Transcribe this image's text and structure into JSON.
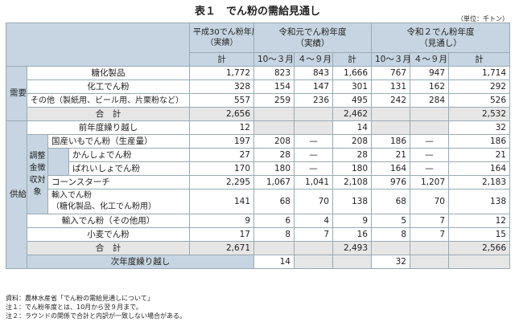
{
  "title": "表１　でん粉の需給見通し",
  "unit": "（単位：千トン）",
  "header": {
    "h30": "平成30でん粉年度",
    "h30_sub": "（実績）",
    "r1": "令和元でん粉年度",
    "r1_sub": "（実績）",
    "r2": "令和２でん粉年度",
    "r2_sub": "（見通し）",
    "kei": "計",
    "oct_mar": "10～３月",
    "apr_sep": "４～９月"
  },
  "demand": {
    "label": "需要",
    "rows": [
      {
        "name": "糖化製品",
        "v": [
          "1,772",
          "823",
          "843",
          "1,666",
          "767",
          "947",
          "1,714"
        ]
      },
      {
        "name": "化工でん粉",
        "v": [
          "328",
          "154",
          "147",
          "301",
          "131",
          "162",
          "292"
        ]
      },
      {
        "name": "その他（製紙用、ビール用、片栗粉など）",
        "v": [
          "557",
          "259",
          "236",
          "495",
          "242",
          "284",
          "526"
        ]
      }
    ],
    "total": {
      "name": "合　計",
      "v": [
        "2,656",
        "",
        "",
        "2,462",
        "",
        "",
        "2,532"
      ]
    }
  },
  "supply": {
    "label": "供給",
    "carry_in": {
      "name": "前年度繰り越し",
      "v": [
        "12",
        "",
        "",
        "14",
        "",
        "",
        "32"
      ]
    },
    "domestic": {
      "name": "国産いもでん粉（生産量）",
      "v": [
        "197",
        "208",
        "—",
        "208",
        "186",
        "—",
        "186"
      ]
    },
    "kansho": {
      "name": "かんしょでん粉",
      "v": [
        "27",
        "28",
        "—",
        "28",
        "21",
        "—",
        "21"
      ]
    },
    "bareisho": {
      "name": "ばれいしょでん粉",
      "v": [
        "170",
        "180",
        "—",
        "180",
        "164",
        "—",
        "164"
      ]
    },
    "adjust_label": "調整金徴収対象",
    "cornstarch": {
      "name": "コーンスターチ",
      "v": [
        "2,295",
        "1,067",
        "1,041",
        "2,108",
        "976",
        "1,207",
        "2,183"
      ]
    },
    "import_sugar": {
      "name": "輸入でん粉",
      "name2": "（糖化製品、化工でん粉用）",
      "v": [
        "141",
        "68",
        "70",
        "138",
        "68",
        "70",
        "138"
      ]
    },
    "import_other": {
      "name": "輸入でん粉（その他用）",
      "v": [
        "9",
        "6",
        "4",
        "9",
        "5",
        "7",
        "12"
      ]
    },
    "wheat": {
      "name": "小麦でん粉",
      "v": [
        "17",
        "8",
        "7",
        "16",
        "8",
        "7",
        "15"
      ]
    },
    "total": {
      "name": "合　計",
      "v": [
        "2,671",
        "",
        "",
        "2,493",
        "",
        "",
        "2,566"
      ]
    }
  },
  "carry_out": {
    "name": "次年度繰り越し",
    "v": [
      "14",
      "",
      "",
      "32",
      "",
      "",
      "34"
    ]
  },
  "notes": [
    "資料：農林水産省「でん粉の需給見通しについて」",
    "注１：でん粉年度とは、10月から翌９月まで。",
    "注２：ラウンドの関係で合計と内訳が一致しない場合がある。"
  ]
}
